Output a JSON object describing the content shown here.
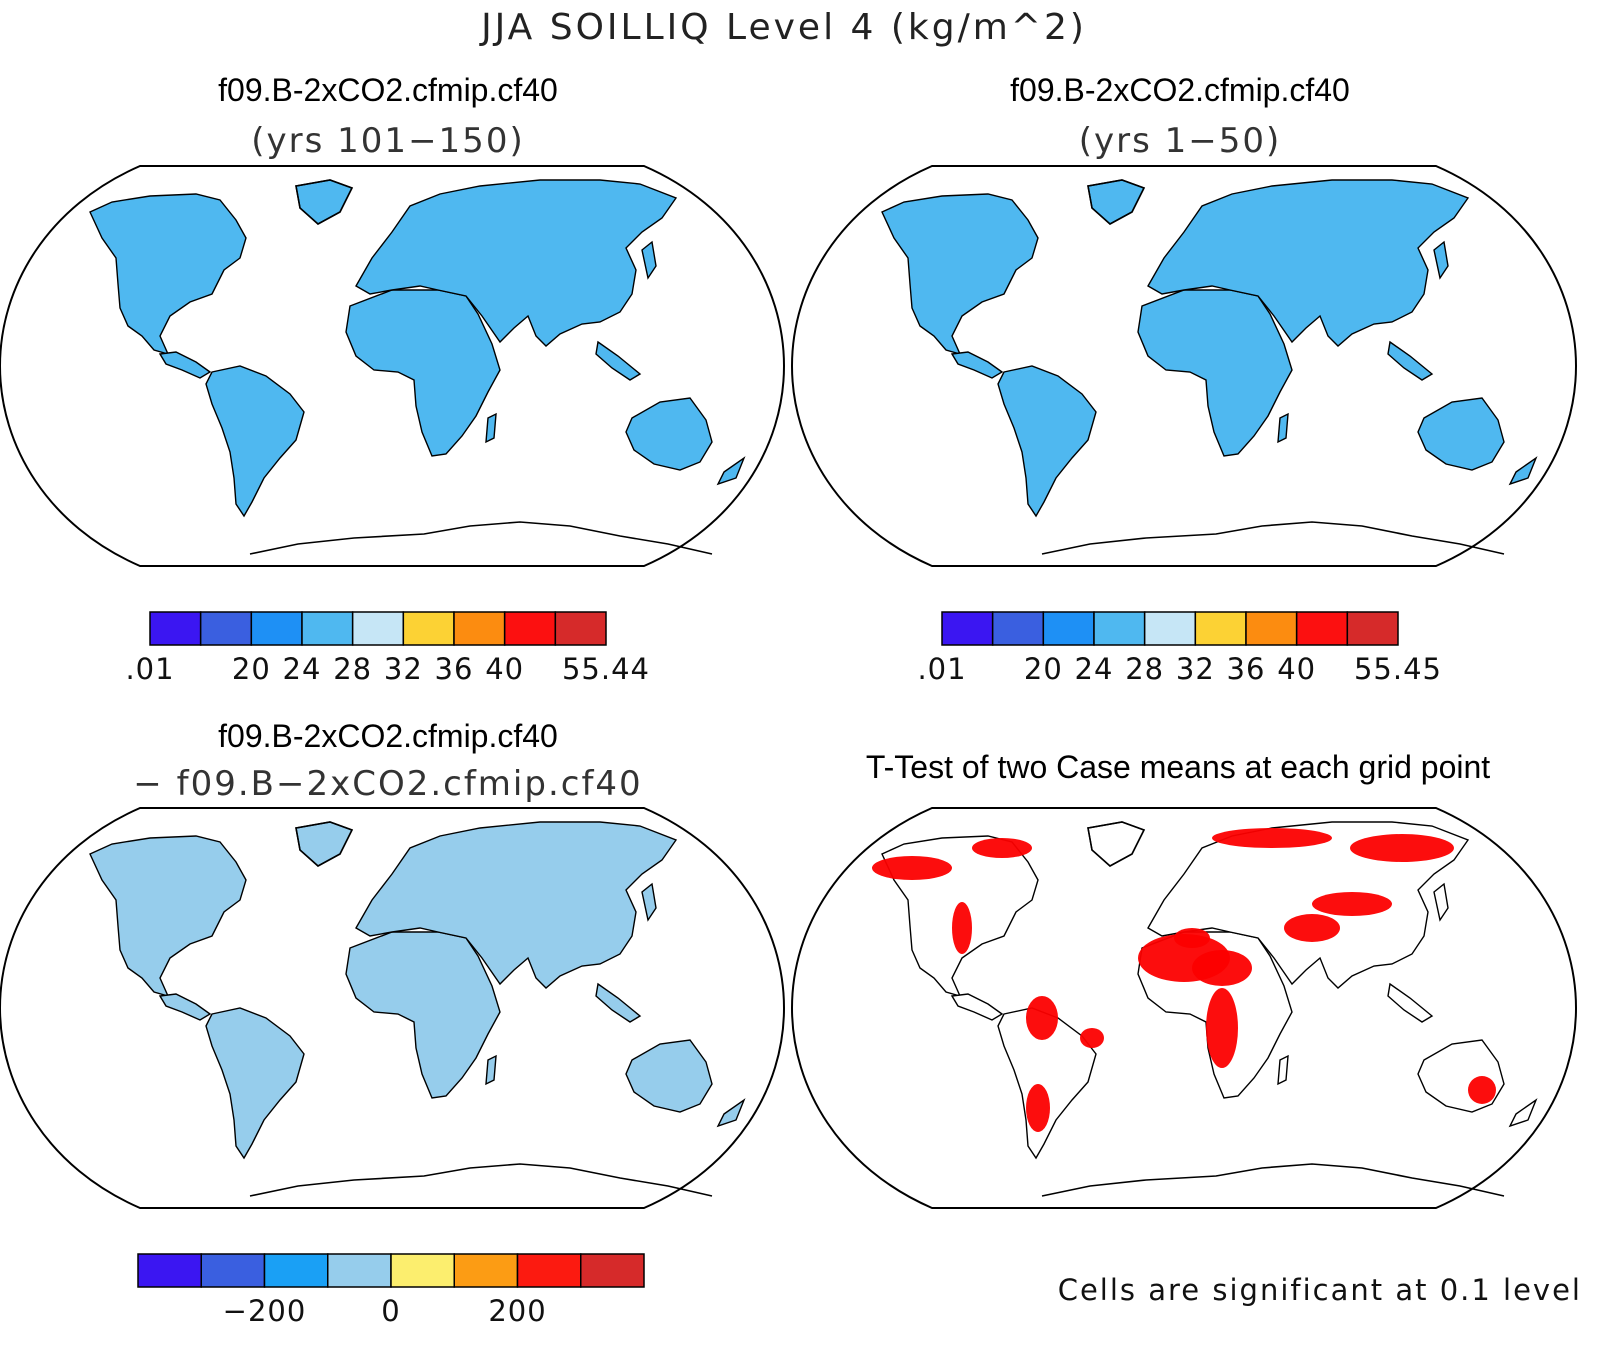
{
  "figure": {
    "title": "JJA SOILLIQ Level 4 (kg/m^2)"
  },
  "colors": {
    "scale_main": [
      "#3b16f2",
      "#3a5fe0",
      "#1e90f5",
      "#4fb8f0",
      "#c6e6f6",
      "#fcd234",
      "#fc8c10",
      "#fc1010",
      "#d62a2a"
    ],
    "scale_diff": [
      "#3b16f2",
      "#3a5fe0",
      "#1aa0f5",
      "#96cdec",
      "#fcee6e",
      "#fc9c14",
      "#fc1a10",
      "#d62a2a"
    ],
    "significant": "#fc0000",
    "antarctica": "#ffffff"
  },
  "panels": [
    {
      "id": "top-left",
      "title_line1": "f09.B-2xCO2.cfmip.cf40",
      "title_line2": "(yrs 101−150)",
      "kind": "field",
      "colorbar": {
        "ticks": [
          ".01",
          "20",
          "24",
          "28",
          "32",
          "36",
          "40",
          "55.44"
        ]
      }
    },
    {
      "id": "top-right",
      "title_line1": "f09.B-2xCO2.cfmip.cf40",
      "title_line2": "(yrs 1−50)",
      "kind": "field",
      "colorbar": {
        "ticks": [
          ".01",
          "20",
          "24",
          "28",
          "32",
          "36",
          "40",
          "55.45"
        ]
      }
    },
    {
      "id": "bottom-left",
      "title_line1": "f09.B-2xCO2.cfmip.cf40",
      "title_line2": "− f09.B−2xCO2.cfmip.cf40",
      "kind": "difference",
      "colorbar": {
        "ticks": [
          "−200",
          "0",
          "200"
        ]
      }
    },
    {
      "id": "bottom-right",
      "title_line1": "T-Test of two Case means at each grid point",
      "kind": "ttest",
      "note": "Cells are significant at 0.1 level"
    }
  ]
}
